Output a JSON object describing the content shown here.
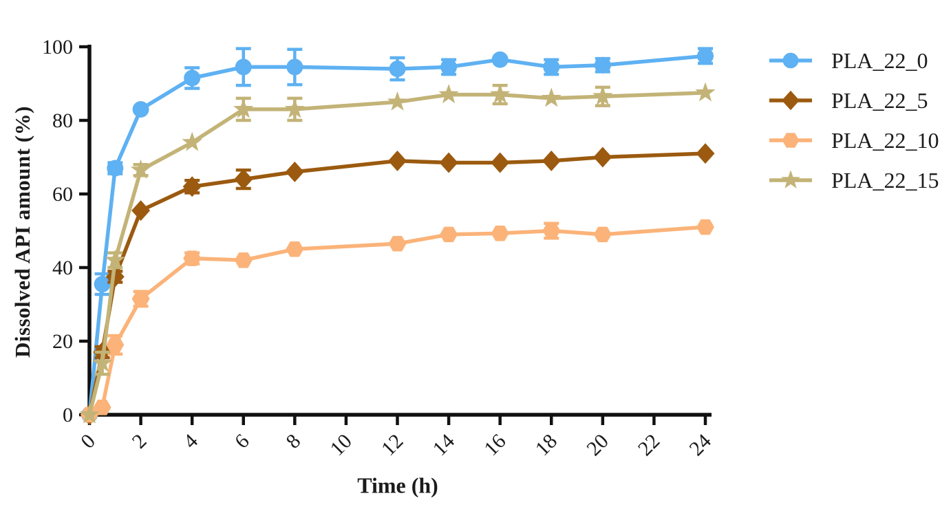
{
  "figure": {
    "background": "#ffffff",
    "axis_color": "#111111",
    "text_color": "#1b1b1b"
  },
  "chart_data": {
    "type": "line",
    "title": "",
    "xlabel": "Time (h)",
    "ylabel": "Dissolved API amount (%)",
    "xlim": [
      0,
      24
    ],
    "ylim": [
      0,
      100
    ],
    "x_ticks": [
      0,
      2,
      4,
      6,
      8,
      10,
      12,
      14,
      16,
      18,
      20,
      22,
      24
    ],
    "y_ticks": [
      0,
      20,
      40,
      60,
      80,
      100
    ],
    "grid": false,
    "legend_position": "right",
    "error_bars": true,
    "x": [
      0,
      0.5,
      1,
      2,
      4,
      6,
      8,
      12,
      14,
      16,
      18,
      20,
      24
    ],
    "series": [
      {
        "name": "PLA_22_0",
        "color": "#5EB1F2",
        "marker": "circle",
        "values": [
          0,
          35.5,
          67,
          83,
          91.5,
          94.5,
          94.5,
          94,
          94.5,
          96.5,
          94.5,
          95,
          97.5
        ],
        "errors": [
          0,
          2.8,
          1.5,
          0,
          2.8,
          5,
          4.8,
          3,
          2,
          0,
          2,
          1.8,
          2
        ]
      },
      {
        "name": "PLA_22_5",
        "color": "#9B5A0F",
        "marker": "diamond",
        "values": [
          0,
          17,
          37.5,
          55.5,
          62,
          64,
          66,
          69,
          68.5,
          68.5,
          69,
          70,
          71
        ],
        "errors": [
          0,
          1.5,
          1.5,
          0,
          1.7,
          2.5,
          0,
          0,
          0,
          0,
          0,
          0,
          0
        ]
      },
      {
        "name": "PLA_22_10",
        "color": "#FBB379",
        "marker": "hexagon",
        "values": [
          0,
          2,
          19,
          31.5,
          42.5,
          42,
          45,
          46.5,
          49,
          49.3,
          50,
          49,
          51
        ],
        "errors": [
          0,
          0,
          2.5,
          2,
          1.5,
          0,
          0,
          0,
          0,
          0,
          2,
          0,
          0
        ]
      },
      {
        "name": "PLA_22_15",
        "color": "#C3B377",
        "marker": "star",
        "values": [
          0,
          14,
          42,
          66.5,
          74,
          83,
          83,
          85,
          87,
          87,
          86,
          86.5,
          87.5
        ],
        "errors": [
          0,
          3,
          2,
          1.5,
          0,
          3,
          3,
          0,
          0,
          2.5,
          0,
          2.5,
          0
        ]
      }
    ]
  }
}
